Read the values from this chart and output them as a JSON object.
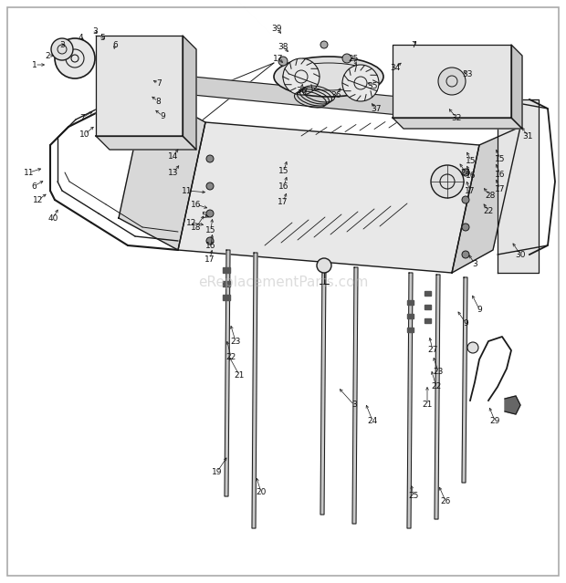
{
  "background_color": "#ffffff",
  "border_color": "#aaaaaa",
  "watermark_text": "eReplacementParts.com",
  "watermark_color": "#bbbbbb",
  "watermark_fontsize": 11,
  "line_color": "#1a1a1a",
  "label_fontsize": 6.5,
  "label_color": "#111111"
}
